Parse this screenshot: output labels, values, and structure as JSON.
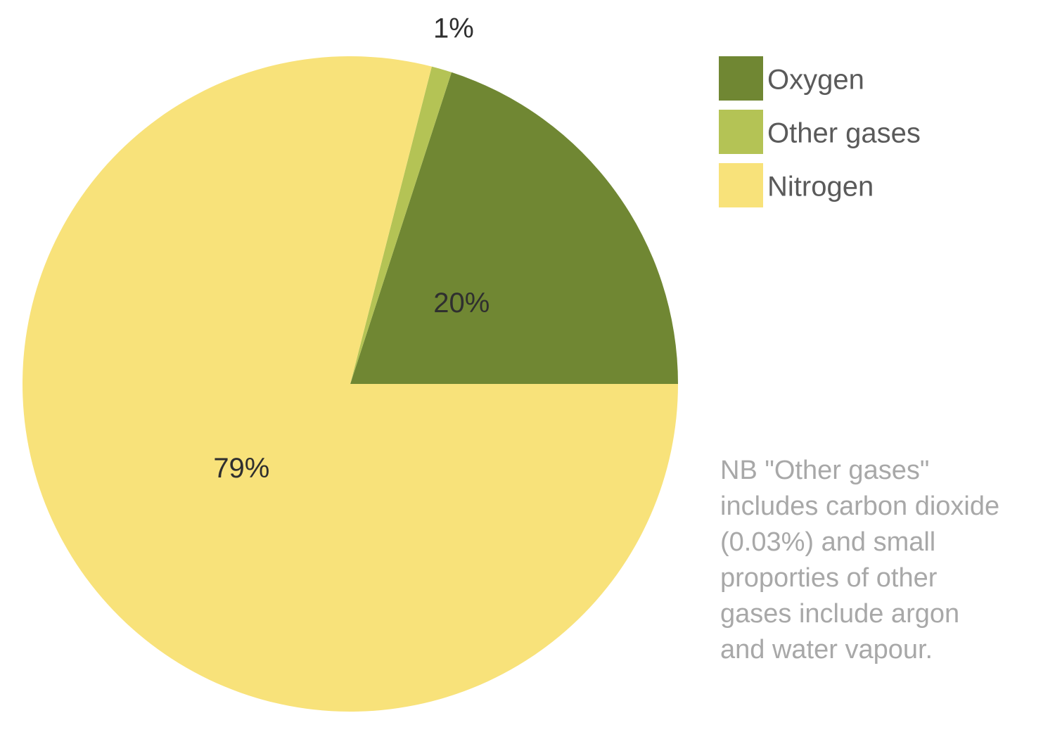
{
  "chart_data": {
    "type": "pie",
    "title": "",
    "slices": [
      {
        "name": "Oxygen",
        "value": 20,
        "label": "20%",
        "color": "#708733"
      },
      {
        "name": "Other gases",
        "value": 1,
        "label": "1%",
        "color": "#b4c355"
      },
      {
        "name": "Nitrogen",
        "value": 79,
        "label": "79%",
        "color": "#f8e27a"
      }
    ],
    "start": "3 o'clock",
    "direction": "counter-clockwise",
    "legend": {
      "placement": "top-right",
      "entries": [
        "Oxygen",
        "Other gases",
        "Nitrogen"
      ]
    }
  },
  "note": {
    "lines": [
      "NB \"Other gases\"",
      "includes carbon dioxide",
      "(0.03%) and small",
      "proporties of other",
      "gases include argon",
      "and water vapour."
    ]
  }
}
